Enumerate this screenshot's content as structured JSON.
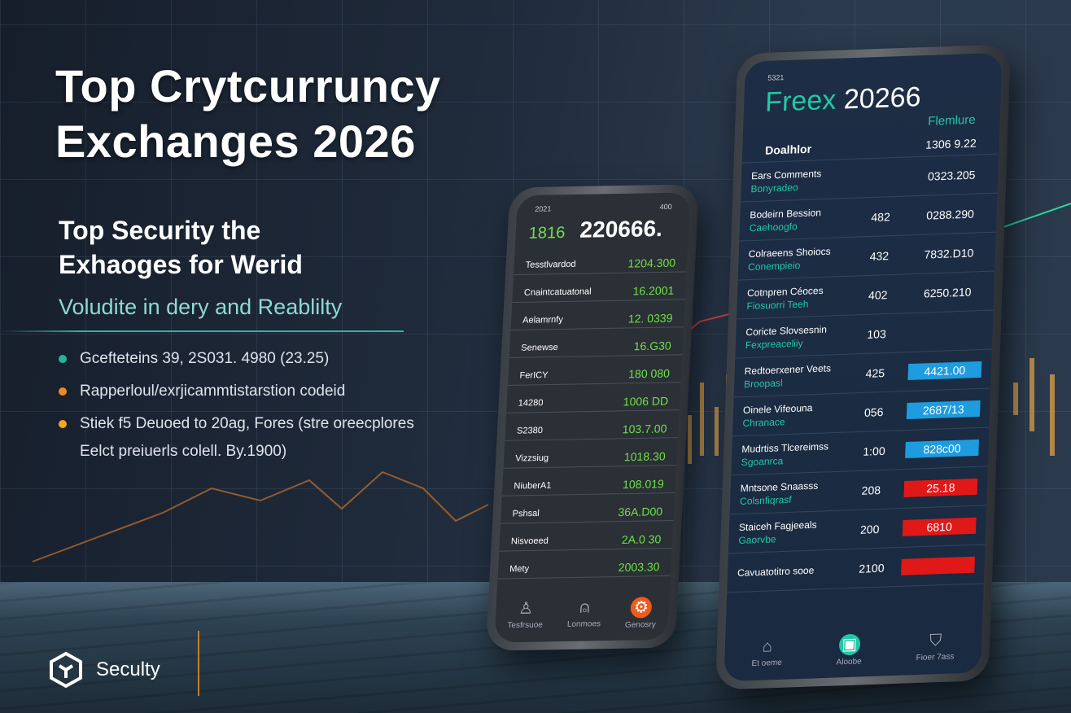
{
  "colors": {
    "accent_teal": "#2bb6a8",
    "accent_orange": "#f08a24",
    "green": "#6fe04a",
    "blue": "#1e9ce0",
    "red": "#e01818"
  },
  "hero": {
    "title_line1": "Top Crytcurruncy",
    "title_line2": "Exchanges 2026",
    "subtitle_line1": "Top Security the",
    "subtitle_line2": "Exhaoges for Werid",
    "tagline": "Voludite in dery and Reablilty",
    "bullets": [
      {
        "text": "Gcefteteins 39, 2S031. 4980 (23.25)",
        "color": "#1fb89a"
      },
      {
        "text": "Rapperloul/exrjicammtistarstion codeid",
        "color": "#f08a24"
      },
      {
        "text": "Stiek f5 Deuoed to 20ag, Fores (stre oreecplores",
        "text2": "Eelct preiuerls colell. By.1900)",
        "color": "#f5a623"
      }
    ]
  },
  "brand": {
    "name": "Seculty",
    "icon": "cube-logo-icon"
  },
  "phone1": {
    "status_left": "2021",
    "status_right": "400",
    "badge": "1816",
    "headline": "220666.",
    "rows": [
      {
        "name": "Tesstlvardod",
        "value": "1204.300"
      },
      {
        "name": "Cnaintcatuatonal",
        "value": "16.2001"
      },
      {
        "name": "Aelamrnfy",
        "value": "12. 0339"
      },
      {
        "name": "Senewse",
        "value": "16.G30"
      },
      {
        "name": "FerICY",
        "value": "180 080"
      },
      {
        "name": "14280",
        "value": "1006 DD"
      },
      {
        "name": "S2380",
        "value": "103.7.00"
      },
      {
        "name": "Vizzsiug",
        "value": "1018.30"
      },
      {
        "name": "NiuberA1",
        "value": "108.019"
      },
      {
        "name": "Pshsal",
        "value": "36A.D00"
      },
      {
        "name": "Nisvoeed",
        "value": "2A.0 30"
      },
      {
        "name": "Mety",
        "value": "2003.30"
      }
    ],
    "nav": [
      {
        "label": "Tesfrsuoe",
        "icon": "user-icon"
      },
      {
        "label": "Lonmoes",
        "icon": "bell-icon"
      },
      {
        "label": "Genosry",
        "icon": "settings-icon",
        "active": true
      }
    ]
  },
  "phone2": {
    "status": "5321",
    "brand": "Freex",
    "year": "20266",
    "link": "Flemlure",
    "header_label": "Doalhlor",
    "header_value": "1306 9.22",
    "rows": [
      {
        "name": "Ears Comments",
        "sub": "Bonyradeo",
        "count": "",
        "value": "0323.205",
        "kind": "plain"
      },
      {
        "name": "Bodeirn Bession",
        "sub": "Caehoogfo",
        "count": "482",
        "value": "0288.290",
        "kind": "plain"
      },
      {
        "name": "Colraeens Shoiocs",
        "sub": "Conempieio",
        "count": "432",
        "value": "7832.D10",
        "kind": "plain"
      },
      {
        "name": "Cotnpren Céoces",
        "sub": "Fiosuorri Teeh",
        "count": "402",
        "value": "6250.210",
        "kind": "plain"
      },
      {
        "name": "Coricte Slovsesnin",
        "sub": "Fexpreaceliiy",
        "count": "103",
        "value": "",
        "kind": "plain"
      },
      {
        "name": "Redtoerxener Veets",
        "sub": "Broopasl",
        "count": "425",
        "value": "4421.00",
        "kind": "blue"
      },
      {
        "name": "Oinele Vifeouna",
        "sub": "Chranace",
        "count": "056",
        "value": "2687/13",
        "kind": "blue"
      },
      {
        "name": "Mudrtiss Tlcereimss",
        "sub": "Sgoanrca",
        "count": "1:00",
        "value": "828c00",
        "kind": "blue"
      },
      {
        "name": "Mntsone Snaasss",
        "sub": "Colsnfiqrasf",
        "count": "208",
        "value": "25.18",
        "kind": "red"
      },
      {
        "name": "Staiceh Fagjeeals",
        "sub": "Gaorvbe",
        "count": "200",
        "value": "6810",
        "kind": "red"
      },
      {
        "name": "Cavuatotitro sooe",
        "sub": "",
        "count": "2100",
        "value": "",
        "kind": "red"
      }
    ],
    "nav": [
      {
        "label": "Et oeme",
        "icon": "home-icon"
      },
      {
        "label": "Aloobe",
        "icon": "wallet-icon",
        "active": true
      },
      {
        "label": "Fioer 7ass",
        "icon": "shield-icon"
      }
    ]
  }
}
